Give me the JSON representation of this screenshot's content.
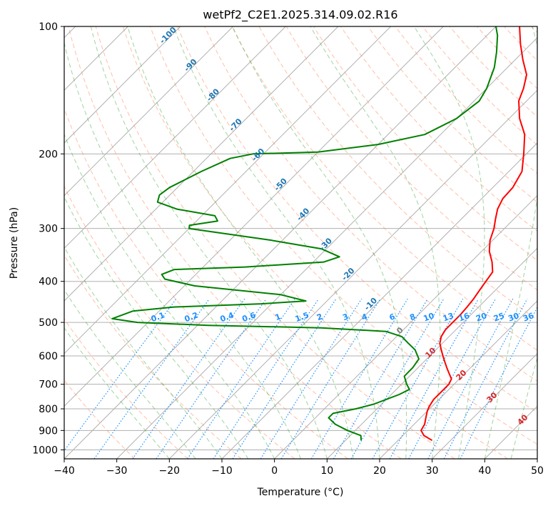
{
  "chart_data": {
    "type": "line",
    "title": "wetPf2_C2E1.2025.314.09.02.R16",
    "xlabel": "Temperature (°C)",
    "ylabel": "Pressure (hPa)",
    "xlim": [
      -40,
      50
    ],
    "ylim": [
      1050,
      100
    ],
    "y_scale": "log",
    "grid": true,
    "x_ticks": [
      -40,
      -30,
      -20,
      -10,
      0,
      10,
      20,
      30,
      40,
      50
    ],
    "y_ticks": [
      100,
      200,
      300,
      400,
      500,
      600,
      700,
      800,
      900,
      1000
    ],
    "skew_degrees": 45,
    "colors": {
      "temperature": "#ff0000",
      "dewpoint": "#008000",
      "grid": "#b0b0b0",
      "dry_adiabat": "#ff7f50",
      "moist_adiabat": "#2ca02c",
      "mixing_ratio": "#1e90ff",
      "wetbulb_label": "#1f77b4",
      "isotherm_label": "#d62728",
      "freezing": "#808080",
      "lcl_curve": "#d2b48c"
    },
    "series": [
      {
        "key": "temperature",
        "points": [
          [
            26.5,
            950
          ],
          [
            24.0,
            925
          ],
          [
            22.5,
            900
          ],
          [
            22.0,
            870
          ],
          [
            21.0,
            840
          ],
          [
            20.0,
            810
          ],
          [
            19.5,
            790
          ],
          [
            19.0,
            760
          ],
          [
            19.0,
            730
          ],
          [
            19.0,
            700
          ],
          [
            18.5,
            680
          ],
          [
            17.0,
            660
          ],
          [
            15.5,
            640
          ],
          [
            14.0,
            620
          ],
          [
            12.5,
            600
          ],
          [
            11.0,
            580
          ],
          [
            9.5,
            560
          ],
          [
            8.5,
            540
          ],
          [
            8.0,
            520
          ],
          [
            8.0,
            500
          ],
          [
            8.0,
            480
          ],
          [
            7.8,
            460
          ],
          [
            7.5,
            440
          ],
          [
            7.0,
            420
          ],
          [
            6.5,
            400
          ],
          [
            6.0,
            380
          ],
          [
            4.0,
            360
          ],
          [
            1.5,
            340
          ],
          [
            -0.5,
            320
          ],
          [
            -2.0,
            300
          ],
          [
            -3.5,
            285
          ],
          [
            -5.0,
            270
          ],
          [
            -6.0,
            255
          ],
          [
            -6.2,
            240
          ],
          [
            -7.5,
            220
          ],
          [
            -10.5,
            200
          ],
          [
            -14.0,
            180
          ],
          [
            -18.0,
            165
          ],
          [
            -21.5,
            150
          ],
          [
            -23.0,
            140
          ],
          [
            -25.0,
            130
          ],
          [
            -28.5,
            120
          ],
          [
            -32.0,
            110
          ],
          [
            -35.5,
            100
          ]
        ]
      },
      {
        "key": "dewpoint",
        "points": [
          [
            13.0,
            950
          ],
          [
            12.0,
            925
          ],
          [
            8.5,
            900
          ],
          [
            5.0,
            870
          ],
          [
            2.5,
            840
          ],
          [
            2.5,
            820
          ],
          [
            6.0,
            800
          ],
          [
            8.5,
            780
          ],
          [
            10.0,
            760
          ],
          [
            11.5,
            740
          ],
          [
            12.5,
            720
          ],
          [
            11.0,
            700
          ],
          [
            9.0,
            670
          ],
          [
            9.0,
            640
          ],
          [
            8.5,
            610
          ],
          [
            6.0,
            580
          ],
          [
            3.5,
            560
          ],
          [
            1.0,
            540
          ],
          [
            -3.0,
            525
          ],
          [
            -16.0,
            515
          ],
          [
            -38.0,
            508
          ],
          [
            -52.0,
            500
          ],
          [
            -57.5,
            490
          ],
          [
            -55.0,
            470
          ],
          [
            -48.0,
            460
          ],
          [
            -32.0,
            452
          ],
          [
            -24.0,
            445
          ],
          [
            -30.0,
            430
          ],
          [
            -48.0,
            410
          ],
          [
            -55.0,
            395
          ],
          [
            -56.5,
            385
          ],
          [
            -55.0,
            375
          ],
          [
            -42.0,
            370
          ],
          [
            -28.0,
            360
          ],
          [
            -26.0,
            350
          ],
          [
            -31.0,
            335
          ],
          [
            -42.0,
            320
          ],
          [
            -60.0,
            300
          ],
          [
            -60.5,
            295
          ],
          [
            -56.0,
            288
          ],
          [
            -57.5,
            280
          ],
          [
            -66.0,
            270
          ],
          [
            -71.0,
            260
          ],
          [
            -72.0,
            250
          ],
          [
            -71.5,
            240
          ],
          [
            -68.5,
            220
          ],
          [
            -65.5,
            205
          ],
          [
            -62.0,
            200
          ],
          [
            -50.0,
            198
          ],
          [
            -40.0,
            190
          ],
          [
            -33.0,
            180
          ],
          [
            -30.0,
            165
          ],
          [
            -29.0,
            150
          ],
          [
            -30.0,
            140
          ],
          [
            -32.5,
            125
          ],
          [
            -35.0,
            115
          ],
          [
            -38.0,
            105
          ],
          [
            -40.0,
            100
          ]
        ]
      }
    ],
    "wetbulb_labels": [
      "-100",
      "-90",
      "-80",
      "-70",
      "-60",
      "-50",
      "-40",
      "-30",
      "-20",
      "-10"
    ],
    "mixing_ratio_labels": [
      "0.1",
      "0.2",
      "0.4",
      "0.6",
      "1",
      "1.5",
      "2",
      "3",
      "4",
      "6",
      "8",
      "10",
      "13",
      "16",
      "20",
      "25",
      "30",
      "36"
    ],
    "isotherm_labels": [
      "0",
      "10",
      "20",
      "30",
      "40"
    ]
  }
}
